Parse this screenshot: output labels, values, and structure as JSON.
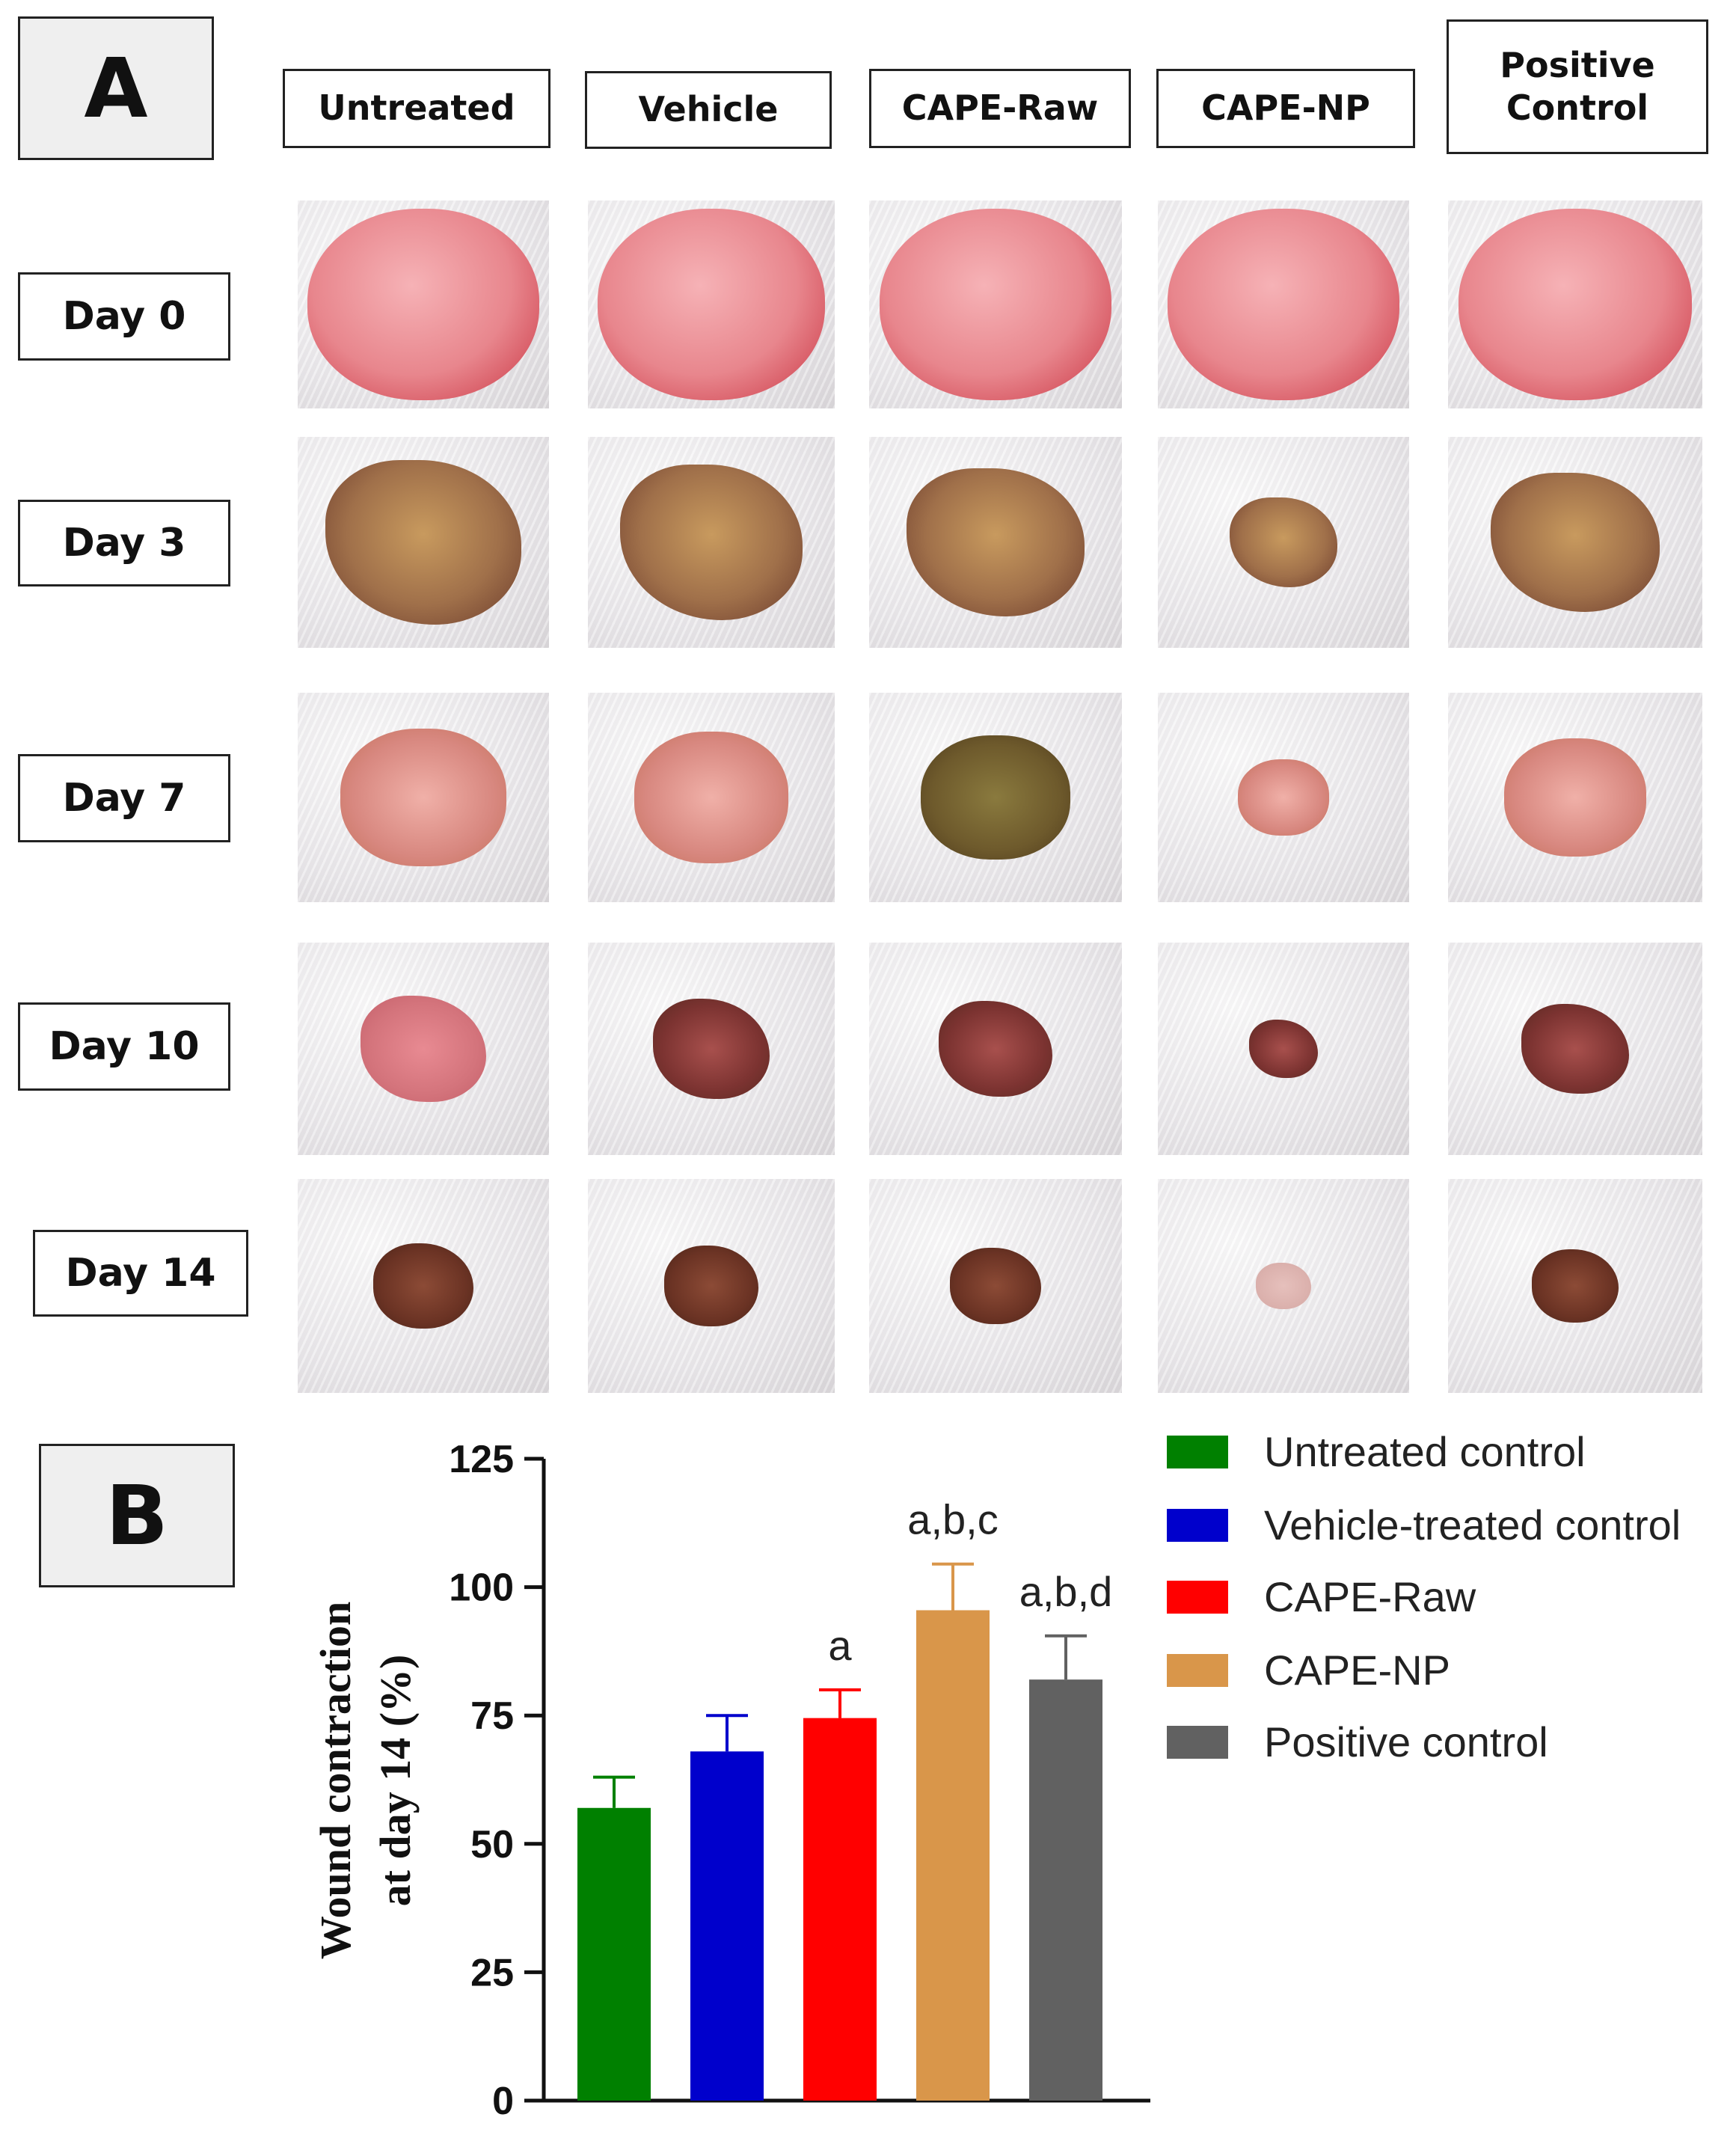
{
  "panel_a": {
    "label": "A",
    "columns": [
      "Untreated",
      "Vehicle",
      "CAPE-Raw",
      "CAPE-NP",
      "Positive\nControl"
    ],
    "rows": [
      "Day 0",
      "Day 3",
      "Day 7",
      "Day 10",
      "Day 14"
    ]
  },
  "panel_b": {
    "label": "B"
  },
  "chart_data": {
    "type": "bar",
    "categories": [
      "Untreated control",
      "Vehicle-treated control",
      "CAPE-Raw",
      "CAPE-NP",
      "Positive control"
    ],
    "values": [
      57,
      68,
      74.5,
      95.5,
      82
    ],
    "errors": [
      6,
      7,
      5.5,
      9,
      8.5
    ],
    "significance": [
      "",
      "",
      "a",
      "a,b,c",
      "a,b,d"
    ],
    "colors": [
      "#008000",
      "#0000cc",
      "#ff0000",
      "#d9964a",
      "#616161"
    ],
    "xlabel": "",
    "ylabel": "Wound contraction\nat day 14 (%)",
    "yticks": [
      0,
      25,
      50,
      75,
      100,
      125
    ],
    "ylim": [
      0,
      125
    ],
    "grid": false,
    "legend_position": "top-right"
  }
}
